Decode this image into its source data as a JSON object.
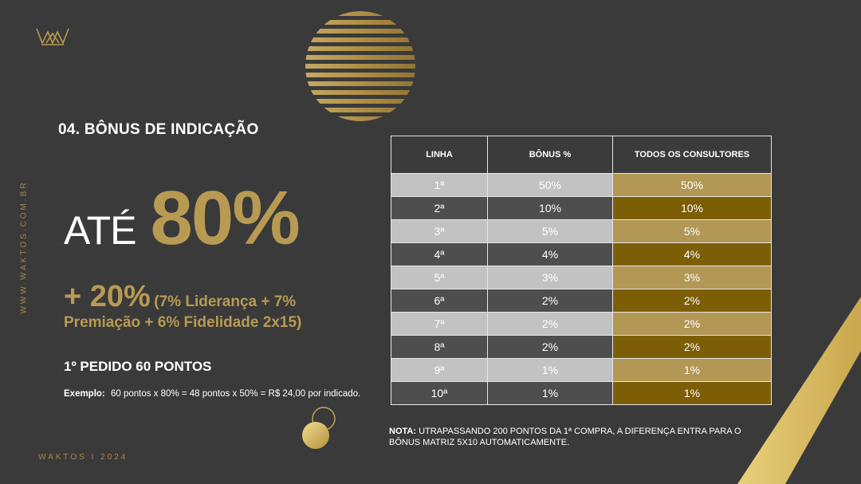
{
  "brand": {
    "website_vertical": "WWW.WAKTOS.COM.BR",
    "footer": "WAKTOS I 2024",
    "logo_icon": "crown-logo-icon",
    "gold": "#b89a52",
    "dark_gold": "#7c5e07",
    "background": "#3a3a3a"
  },
  "heading": "04. BÔNUS DE INDICAÇÃO",
  "headline": {
    "prefix": "ATÉ",
    "percent": "80%"
  },
  "extra": {
    "plus": "+ 20%",
    "paren_part1": "(7% Liderança + 7%",
    "paren_part2": "Premiação + 6% Fidelidade 2x15)"
  },
  "pedido": "1º PEDIDO 60 PONTOS",
  "exemplo": {
    "label": "Exemplo:",
    "text": "60 pontos x 80% = 48 pontos x 50% = R$ 24,00 por indicado."
  },
  "table": {
    "headers": [
      "LINHA",
      "BÔNUS %",
      "TODOS OS CONSULTORES"
    ],
    "rows": [
      {
        "linha": "1ª",
        "bonus": "50%",
        "todos": "50%"
      },
      {
        "linha": "2ª",
        "bonus": "10%",
        "todos": "10%"
      },
      {
        "linha": "3ª",
        "bonus": "5%",
        "todos": "5%"
      },
      {
        "linha": "4ª",
        "bonus": "4%",
        "todos": "4%"
      },
      {
        "linha": "5ª",
        "bonus": "3%",
        "todos": "3%"
      },
      {
        "linha": "6ª",
        "bonus": "2%",
        "todos": "2%"
      },
      {
        "linha": "7ª",
        "bonus": "2%",
        "todos": "2%"
      },
      {
        "linha": "8ª",
        "bonus": "2%",
        "todos": "2%"
      },
      {
        "linha": "9ª",
        "bonus": "1%",
        "todos": "1%"
      },
      {
        "linha": "10ª",
        "bonus": "1%",
        "todos": "1%"
      }
    ]
  },
  "nota": {
    "label": "NOTA:",
    "text": "UTRAPASSANDO 200 PONTOS DA 1ª COMPRA, A DIFERENÇA ENTRA PARA O BÔNUS MATRIZ 5X10 AUTOMATICAMENTE."
  }
}
